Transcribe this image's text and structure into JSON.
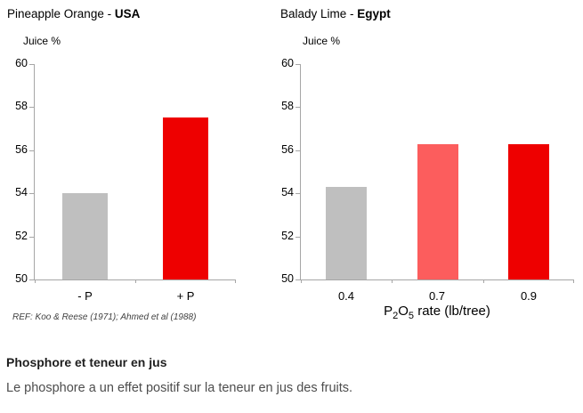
{
  "chart_data": [
    {
      "type": "bar",
      "title_regular": "Pineapple Orange - ",
      "title_bold": "USA",
      "ylabel": "Juice %",
      "xlabel": "",
      "categories": [
        "- P",
        "+ P"
      ],
      "values": [
        54.0,
        57.5
      ],
      "bar_colors": [
        "#bfbfbf",
        "#ee0000"
      ],
      "ylim": [
        50,
        60
      ],
      "yticks": [
        50,
        52,
        54,
        56,
        58,
        60
      ],
      "grid": "off",
      "legend": "none",
      "footnote": "REF: Koo & Reese (1971); Ahmed et al (1988)"
    },
    {
      "type": "bar",
      "title_regular": "Balady Lime - ",
      "title_bold": "Egypt",
      "ylabel": "Juice %",
      "xlabel": "P2O5 rate (lb/tree)",
      "xlabel_segments": [
        {
          "text": "P"
        },
        {
          "sub": "2"
        },
        {
          "text": "O"
        },
        {
          "sub": "5"
        },
        {
          "text": " rate (lb/tree)"
        }
      ],
      "categories": [
        "0.4",
        "0.7",
        "0.9"
      ],
      "values": [
        54.3,
        56.3,
        56.3
      ],
      "bar_colors": [
        "#bfbfbf",
        "#fc5d5d",
        "#ee0000"
      ],
      "ylim": [
        50,
        60
      ],
      "yticks": [
        50,
        52,
        54,
        56,
        58,
        60
      ],
      "grid": "off",
      "legend": "none",
      "footnote": ""
    }
  ],
  "caption": {
    "heading": "Phosphore et teneur en jus",
    "body": "Le phosphore a un effet positif sur la teneur en jus des fruits."
  },
  "colors": {
    "axis": "#a6a6a6",
    "bar_gray": "#bfbfbf",
    "bar_red": "#ee0000",
    "bar_salmon": "#fc5d5d",
    "heading_text": "#1f1f1f",
    "body_text": "#4d4d4d"
  }
}
